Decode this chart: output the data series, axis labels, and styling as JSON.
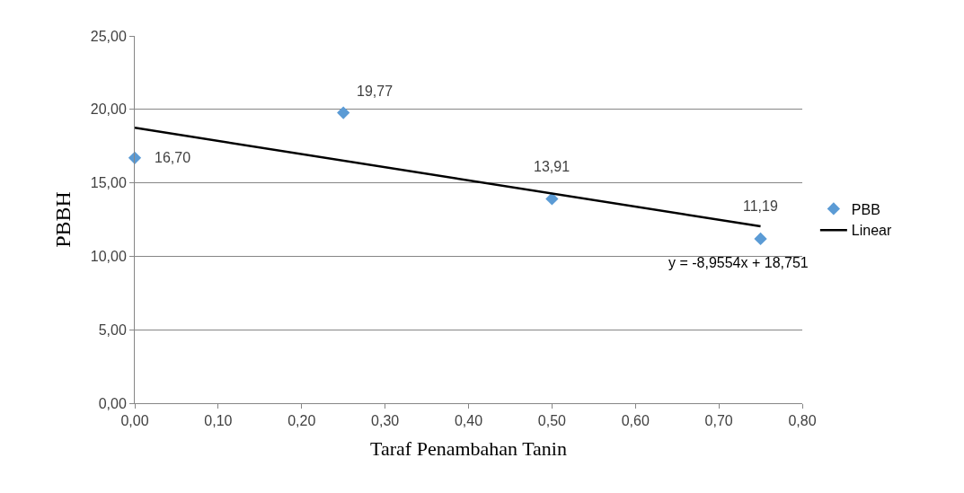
{
  "chart_data": {
    "type": "scatter",
    "xlabel": "Taraf Penambahan Tanin",
    "ylabel": "PBBH",
    "series": [
      {
        "name": "PBB",
        "color": "#5b9bd5",
        "x": [
          0,
          0.25,
          0.5,
          0.75
        ],
        "values": [
          16.7,
          19.77,
          13.91,
          11.19
        ],
        "value_labels": [
          "16,70",
          "19,77",
          "13,91",
          "11,19"
        ],
        "marker": "diamond"
      },
      {
        "name": "Linear",
        "type": "line",
        "color": "#000000",
        "x": [
          0,
          0.75
        ],
        "values": [
          18.75,
          12.04
        ],
        "line_style": "solid",
        "marker": "none"
      }
    ],
    "annotations": [
      {
        "text": "y = -8,9554x + 18,751",
        "x": 0.75,
        "y": 12.04
      }
    ],
    "xlim": [
      0,
      0.8
    ],
    "xticks": [
      {
        "value": 0,
        "label": "0,00"
      },
      {
        "value": 0.1,
        "label": "0,10"
      },
      {
        "value": 0.2,
        "label": "0,20"
      },
      {
        "value": 0.3,
        "label": "0,30"
      },
      {
        "value": 0.4,
        "label": "0,40"
      },
      {
        "value": 0.5,
        "label": "0,50"
      },
      {
        "value": 0.6,
        "label": "0,60"
      },
      {
        "value": 0.7,
        "label": "0,70"
      },
      {
        "value": 0.8,
        "label": "0,80"
      }
    ],
    "ylim": [
      0,
      25
    ],
    "yticks": [
      {
        "value": 0,
        "label": "0,00"
      },
      {
        "value": 5,
        "label": "5,00"
      },
      {
        "value": 10,
        "label": "10,00"
      },
      {
        "value": 15,
        "label": "15,00"
      },
      {
        "value": 20,
        "label": "20,00"
      },
      {
        "value": 25,
        "label": "25,00"
      }
    ],
    "grid": "y",
    "legend": "right"
  }
}
